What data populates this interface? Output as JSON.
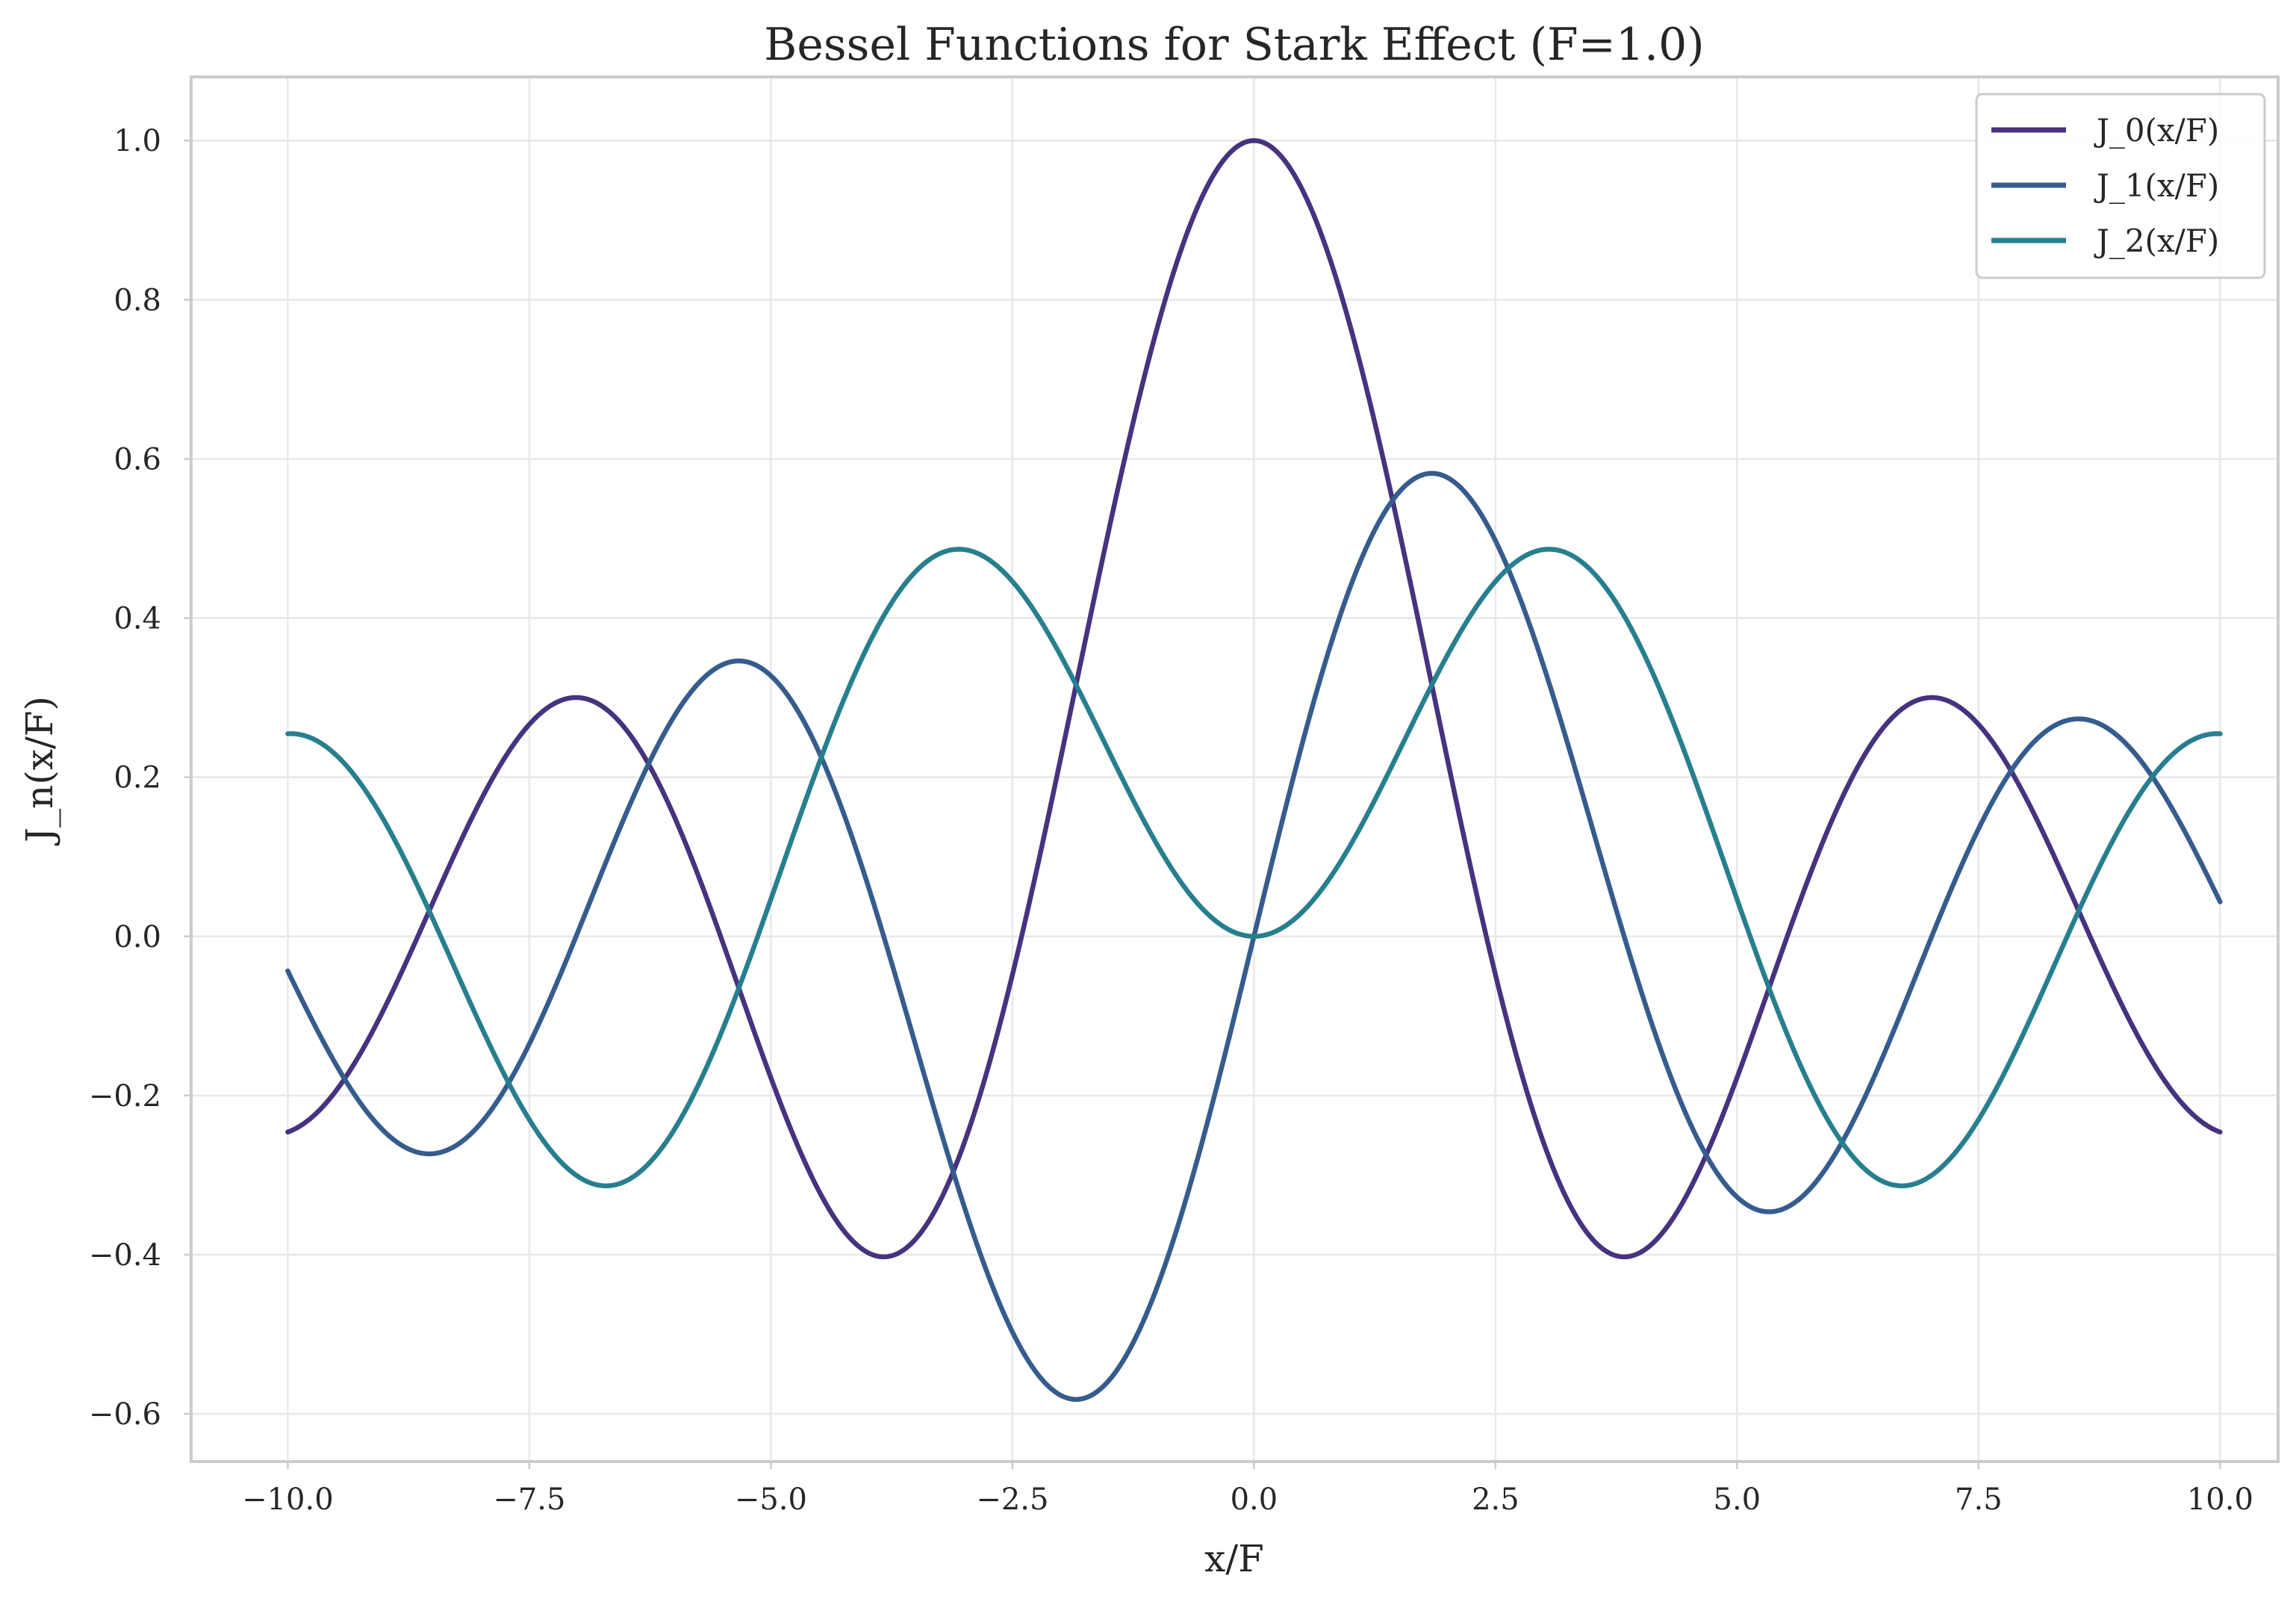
{
  "chart_data": {
    "type": "line",
    "title": "Bessel Functions for Stark Effect (F=1.0)",
    "xlabel": "x/F",
    "ylabel": "J_n(x/F)",
    "xlim": [
      -11.0,
      10.6
    ],
    "ylim": [
      -0.66,
      1.08
    ],
    "x_ticks": [
      -10.0,
      -7.5,
      -5.0,
      -2.5,
      0.0,
      2.5,
      5.0,
      7.5,
      10.0
    ],
    "x_tick_labels": [
      "−10.0",
      "−7.5",
      "−5.0",
      "−2.5",
      "0.0",
      "2.5",
      "5.0",
      "7.5",
      "10.0"
    ],
    "y_ticks": [
      -0.6,
      -0.4,
      -0.2,
      0.0,
      0.2,
      0.4,
      0.6,
      0.8,
      1.0
    ],
    "y_tick_labels": [
      "−0.6",
      "−0.4",
      "−0.2",
      "0.0",
      "0.2",
      "0.4",
      "0.6",
      "0.8",
      "1.0"
    ],
    "grid": true,
    "legend_position": "top-right",
    "x_range": [
      -10.0,
      10.0
    ],
    "series": [
      {
        "name": "J_0(x/F)",
        "order": 0,
        "color": "#46327e",
        "x": [
          -10.0,
          -9.0,
          -8.0,
          -7.0,
          -6.0,
          -5.0,
          -4.0,
          -3.83,
          -3.0,
          -2.0,
          -1.0,
          0.0,
          1.0,
          2.0,
          3.0,
          3.83,
          4.0,
          5.0,
          6.0,
          7.0,
          8.0,
          9.0,
          10.0
        ],
        "y": [
          -0.246,
          -0.09,
          0.172,
          0.3,
          0.151,
          -0.178,
          -0.397,
          -0.403,
          -0.26,
          0.224,
          0.765,
          1.0,
          0.765,
          0.224,
          -0.26,
          -0.403,
          -0.397,
          -0.178,
          0.151,
          0.3,
          0.172,
          -0.09,
          -0.246
        ]
      },
      {
        "name": "J_1(x/F)",
        "order": 1,
        "color": "#365c8d",
        "x": [
          -10.0,
          -9.0,
          -8.54,
          -8.0,
          -7.0,
          -6.0,
          -5.33,
          -5.0,
          -4.0,
          -3.0,
          -2.0,
          -1.84,
          -1.0,
          0.0,
          1.0,
          1.84,
          2.0,
          3.0,
          4.0,
          5.0,
          5.33,
          6.0,
          7.0,
          8.0,
          8.54,
          9.0,
          10.0
        ],
        "y": [
          -0.043,
          -0.245,
          -0.273,
          -0.235,
          -0.005,
          0.277,
          0.346,
          0.328,
          0.066,
          -0.339,
          -0.577,
          -0.582,
          -0.44,
          0.0,
          0.44,
          0.582,
          0.577,
          0.339,
          -0.066,
          -0.328,
          -0.346,
          -0.277,
          0.005,
          0.235,
          0.273,
          0.245,
          0.043
        ]
      },
      {
        "name": "J_2(x/F)",
        "order": 2,
        "color": "#277f8e",
        "x": [
          -10.0,
          -9.0,
          -8.0,
          -7.0,
          -6.71,
          -6.0,
          -5.0,
          -4.0,
          -3.05,
          -3.0,
          -2.0,
          -1.0,
          0.0,
          1.0,
          2.0,
          3.0,
          3.05,
          4.0,
          5.0,
          6.0,
          6.71,
          7.0,
          8.0,
          9.0,
          10.0
        ],
        "y": [
          0.255,
          0.145,
          -0.113,
          -0.301,
          -0.314,
          -0.243,
          0.047,
          0.364,
          0.486,
          0.486,
          0.353,
          0.115,
          0.0,
          0.115,
          0.353,
          0.486,
          0.486,
          0.364,
          0.047,
          -0.243,
          -0.314,
          -0.301,
          -0.113,
          0.145,
          0.255
        ]
      }
    ]
  }
}
